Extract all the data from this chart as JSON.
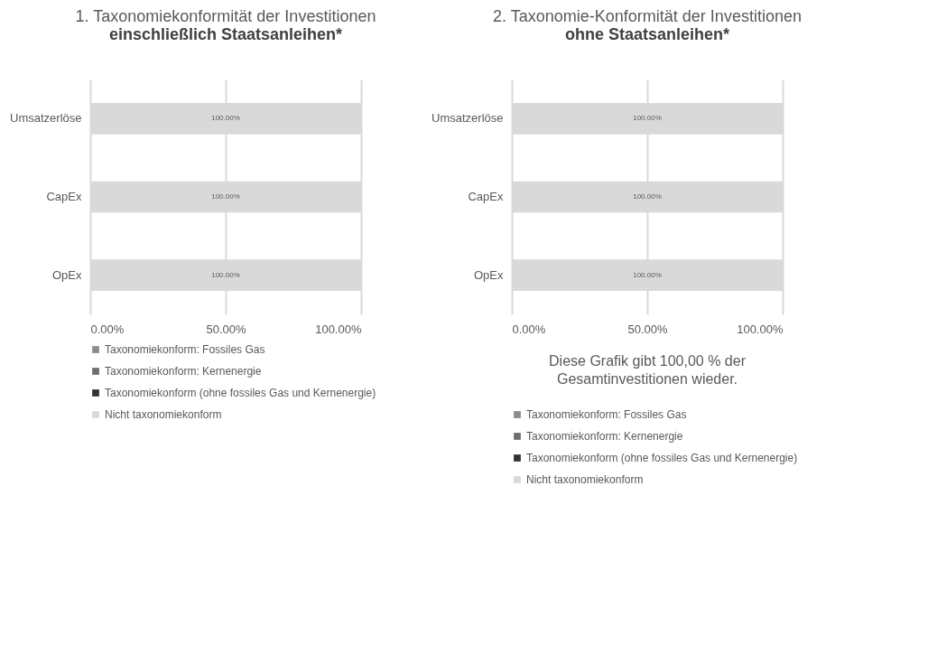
{
  "chart_data": [
    {
      "type": "bar",
      "orientation": "horizontal",
      "stacked": true,
      "title": "1. Taxonomiekonformität der Investitionen",
      "subtitle": "einschließlich Staatsanleihen*",
      "categories": [
        "Umsatzerlöse",
        "CapEx",
        "OpEx"
      ],
      "series": [
        {
          "name": "Taxonomiekonform: Fossiles Gas",
          "color": "#8c8c8c",
          "values": [
            0,
            0,
            0
          ]
        },
        {
          "name": "Taxonomiekonform: Kernenergie",
          "color": "#6e6e6e",
          "values": [
            0,
            0,
            0
          ]
        },
        {
          "name": "Taxonomiekonform (ohne fossiles Gas und Kernenergie)",
          "color": "#333333",
          "values": [
            0,
            0,
            0
          ]
        },
        {
          "name": "Nicht taxonomiekonform",
          "color": "#d9d9d9",
          "values": [
            100,
            100,
            100
          ],
          "value_labels": [
            "100.00%",
            "100.00%",
            "100.00%"
          ]
        }
      ],
      "xlim": [
        0,
        100
      ],
      "xticks": [
        {
          "value": 0,
          "label": "0.00%"
        },
        {
          "value": 50,
          "label": "50.00%"
        },
        {
          "value": 100,
          "label": "100.00%"
        }
      ],
      "grid": "x",
      "legend": "bottom"
    },
    {
      "type": "bar",
      "orientation": "horizontal",
      "stacked": true,
      "title": "2. Taxonomie-Konformität der Investitionen",
      "subtitle": "ohne Staatsanleihen*",
      "categories": [
        "Umsatzerlöse",
        "CapEx",
        "OpEx"
      ],
      "series": [
        {
          "name": "Taxonomiekonform: Fossiles Gas",
          "color": "#8c8c8c",
          "values": [
            0,
            0,
            0
          ]
        },
        {
          "name": "Taxonomiekonform: Kernenergie",
          "color": "#6e6e6e",
          "values": [
            0,
            0,
            0
          ]
        },
        {
          "name": "Taxonomiekonform (ohne fossiles Gas und Kernenergie)",
          "color": "#333333",
          "values": [
            0,
            0,
            0
          ]
        },
        {
          "name": "Nicht taxonomiekonform",
          "color": "#d9d9d9",
          "values": [
            100,
            100,
            100
          ],
          "value_labels": [
            "100.00%",
            "100.00%",
            "100.00%"
          ]
        }
      ],
      "xlim": [
        0,
        100
      ],
      "xticks": [
        {
          "value": 0,
          "label": "0.00%"
        },
        {
          "value": 50,
          "label": "50.00%"
        },
        {
          "value": 100,
          "label": "100.00%"
        }
      ],
      "grid": "x",
      "legend": "bottom",
      "annotations": [
        "Diese Grafik gibt  100,00 % der Gesamtinvestitionen wieder."
      ]
    }
  ]
}
